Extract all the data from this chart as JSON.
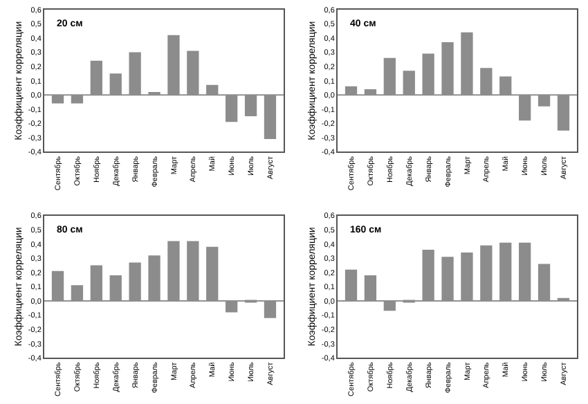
{
  "chart_data": [
    {
      "type": "bar",
      "annotations": [
        "20 см"
      ],
      "ylabel": "Коэффициент корреляции",
      "categories": [
        "Сентябрь",
        "Октябрь",
        "Ноябрь",
        "Декабрь",
        "Январь",
        "Февраль",
        "Март",
        "Апрель",
        "Май",
        "Июнь",
        "Июль",
        "Август"
      ],
      "values": [
        -0.06,
        -0.06,
        0.24,
        0.15,
        0.3,
        0.02,
        0.42,
        0.31,
        0.07,
        -0.19,
        -0.15,
        -0.31
      ],
      "color": "#8c8c8c",
      "ylim": [
        -0.4,
        0.6
      ],
      "yticks": [
        {
          "value": -0.4,
          "label": "-0,4"
        },
        {
          "value": -0.3,
          "label": "-0,3"
        },
        {
          "value": -0.2,
          "label": "-0,2"
        },
        {
          "value": -0.1,
          "label": "-0,1"
        },
        {
          "value": 0,
          "label": "0,0"
        },
        {
          "value": 0.1,
          "label": "0,1"
        },
        {
          "value": 0.2,
          "label": "0,2"
        },
        {
          "value": 0.3,
          "label": "0,3"
        },
        {
          "value": 0.4,
          "label": "0,4"
        },
        {
          "value": 0.5,
          "label": "0,5"
        },
        {
          "value": 0.6,
          "label": "0,6"
        }
      ],
      "ref_lines": [
        {
          "axis": "y",
          "value": 0,
          "color": "#909090"
        }
      ],
      "grid": false,
      "legend": false
    },
    {
      "type": "bar",
      "annotations": [
        "40 см"
      ],
      "ylabel": "Коэффициент корреляции",
      "categories": [
        "Сентябрь",
        "Октябрь",
        "Ноябрь",
        "Декабрь",
        "Январь",
        "Февраль",
        "Март",
        "Апрель",
        "Май",
        "Июнь",
        "Июль",
        "Август"
      ],
      "values": [
        0.06,
        0.04,
        0.26,
        0.17,
        0.29,
        0.37,
        0.44,
        0.19,
        0.13,
        -0.18,
        -0.08,
        -0.25
      ],
      "color": "#8c8c8c",
      "ylim": [
        -0.4,
        0.6
      ],
      "yticks": [
        {
          "value": -0.4,
          "label": "-0,4"
        },
        {
          "value": -0.3,
          "label": "-0,3"
        },
        {
          "value": -0.2,
          "label": "-0,2"
        },
        {
          "value": -0.1,
          "label": "-0,1"
        },
        {
          "value": 0,
          "label": "0,0"
        },
        {
          "value": 0.1,
          "label": "0,1"
        },
        {
          "value": 0.2,
          "label": "0,2"
        },
        {
          "value": 0.3,
          "label": "0,3"
        },
        {
          "value": 0.4,
          "label": "0,4"
        },
        {
          "value": 0.5,
          "label": "0,5"
        },
        {
          "value": 0.6,
          "label": "0,6"
        }
      ],
      "ref_lines": [
        {
          "axis": "y",
          "value": 0,
          "color": "#909090"
        }
      ],
      "grid": false,
      "legend": false
    },
    {
      "type": "bar",
      "annotations": [
        "80 см"
      ],
      "ylabel": "Коэффициент корреляции",
      "categories": [
        "Сентябрь",
        "Октябрь",
        "Ноябрь",
        "Декабрь",
        "Январь",
        "Февраль",
        "Март",
        "Апрель",
        "Май",
        "Июнь",
        "Июль",
        "Август"
      ],
      "values": [
        0.21,
        0.11,
        0.25,
        0.18,
        0.27,
        0.32,
        0.42,
        0.42,
        0.38,
        -0.08,
        -0.01,
        -0.12
      ],
      "color": "#8c8c8c",
      "ylim": [
        -0.4,
        0.6
      ],
      "yticks": [
        {
          "value": -0.4,
          "label": "-0,4"
        },
        {
          "value": -0.3,
          "label": "-0,3"
        },
        {
          "value": -0.2,
          "label": "-0,2"
        },
        {
          "value": -0.1,
          "label": "-0,1"
        },
        {
          "value": 0,
          "label": "0,0"
        },
        {
          "value": 0.1,
          "label": "0,1"
        },
        {
          "value": 0.2,
          "label": "0,2"
        },
        {
          "value": 0.3,
          "label": "0,3"
        },
        {
          "value": 0.4,
          "label": "0,4"
        },
        {
          "value": 0.5,
          "label": "0,5"
        },
        {
          "value": 0.6,
          "label": "0,6"
        }
      ],
      "ref_lines": [
        {
          "axis": "y",
          "value": 0,
          "color": "#909090"
        }
      ],
      "grid": false,
      "legend": false
    },
    {
      "type": "bar",
      "annotations": [
        "160 см"
      ],
      "ylabel": "Коэффициент корреляции",
      "categories": [
        "Сентябрь",
        "Октябрь",
        "Ноябрь",
        "Декабрь",
        "Январь",
        "Февраль",
        "Март",
        "Апрель",
        "Май",
        "Июнь",
        "Июль",
        "Август"
      ],
      "values": [
        0.22,
        0.18,
        -0.07,
        -0.01,
        0.36,
        0.31,
        0.34,
        0.39,
        0.41,
        0.41,
        0.26,
        0.02
      ],
      "color": "#8c8c8c",
      "ylim": [
        -0.4,
        0.6
      ],
      "yticks": [
        {
          "value": -0.4,
          "label": "-0,4"
        },
        {
          "value": -0.3,
          "label": "-0,3"
        },
        {
          "value": -0.2,
          "label": "-0,2"
        },
        {
          "value": -0.1,
          "label": "-0,1"
        },
        {
          "value": 0,
          "label": "0,0"
        },
        {
          "value": 0.1,
          "label": "0,1"
        },
        {
          "value": 0.2,
          "label": "0,2"
        },
        {
          "value": 0.3,
          "label": "0,3"
        },
        {
          "value": 0.4,
          "label": "0,4"
        },
        {
          "value": 0.5,
          "label": "0,5"
        },
        {
          "value": 0.6,
          "label": "0,6"
        }
      ],
      "ref_lines": [
        {
          "axis": "y",
          "value": 0,
          "color": "#909090"
        }
      ],
      "grid": false,
      "legend": false
    }
  ]
}
